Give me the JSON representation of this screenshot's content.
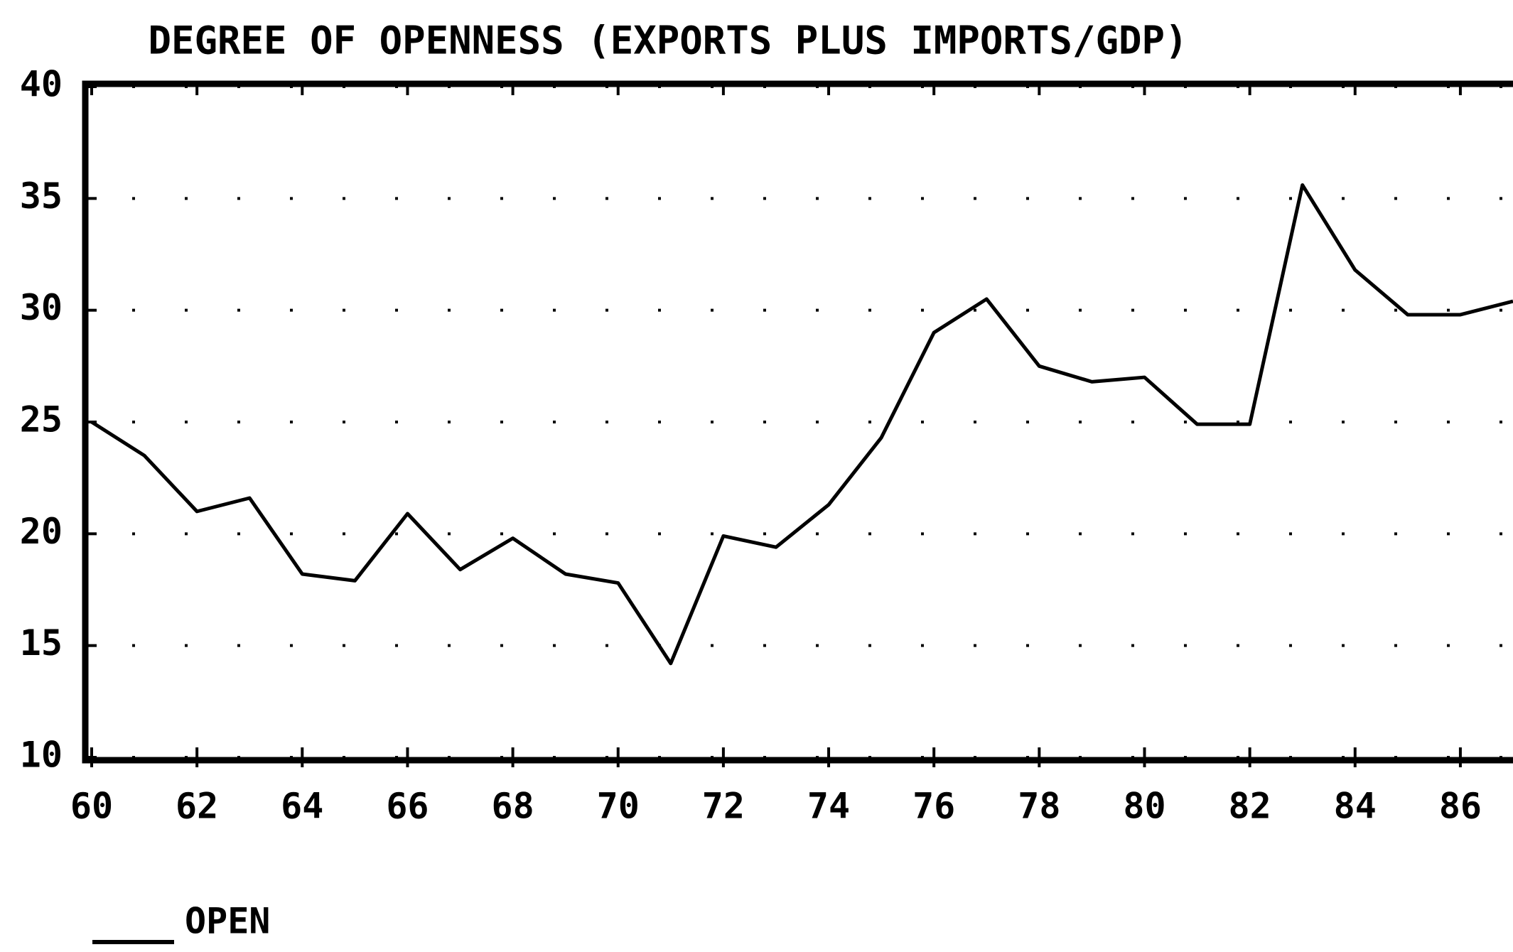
{
  "chart_data": {
    "type": "line",
    "title": "DEGREE OF OPENNESS (EXPORTS PLUS IMPORTS/GDP)",
    "x": [
      60,
      61,
      62,
      63,
      64,
      65,
      66,
      67,
      68,
      69,
      70,
      71,
      72,
      73,
      74,
      75,
      76,
      77,
      78,
      79,
      80,
      81,
      82,
      83,
      84,
      85,
      86,
      87
    ],
    "series": [
      {
        "name": "OPEN",
        "color": "#000000",
        "values": [
          25.0,
          23.5,
          21.0,
          21.6,
          18.2,
          17.9,
          20.9,
          18.4,
          19.8,
          18.2,
          17.8,
          14.2,
          19.9,
          19.4,
          21.3,
          24.3,
          29.0,
          30.5,
          27.5,
          26.8,
          27.0,
          24.9,
          24.9,
          35.6,
          31.8,
          29.8,
          29.8,
          30.4
        ]
      }
    ],
    "xlim": [
      60,
      87
    ],
    "xticks": [
      60,
      62,
      64,
      66,
      68,
      70,
      72,
      74,
      76,
      78,
      80,
      82,
      84,
      86
    ],
    "ylim": [
      10,
      40
    ],
    "yticks": [
      10,
      15,
      20,
      25,
      30,
      35,
      40
    ],
    "grid": true
  }
}
